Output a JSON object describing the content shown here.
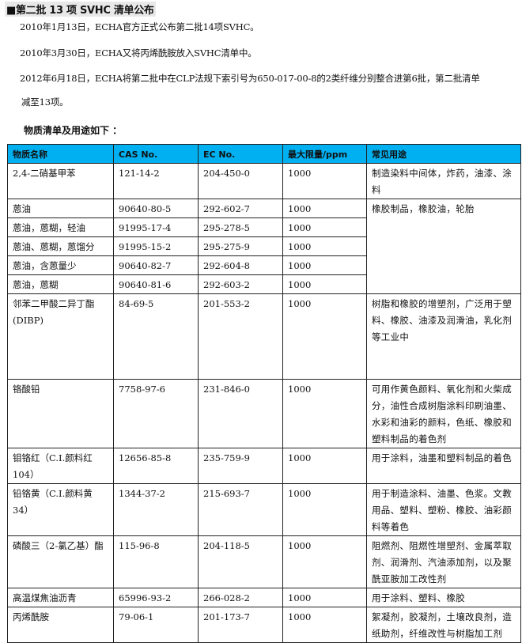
{
  "title": "■第二批 13 项 SVHC 清单公布",
  "paragraphs": [
    "2010年1月13日，ECHA官方正式公布第二批14项SVHC。",
    "2010年3月30日，ECHA又将丙烯酰胺放入SVHC清单中。",
    "2012年6月18日，ECHA将第二批中在CLP法规下索引号为650-017-00-8的2类纤维分别整合进第6批，第二批清单",
    "减至13项。"
  ],
  "subtitle": "物质清单及用途如下 ：",
  "table": {
    "header_color": "#00b0f0",
    "headers": [
      "物质名称",
      "CAS No.",
      "EC No.",
      "最大限量/ppm",
      "常见用途"
    ],
    "rows": [
      {
        "name": "2,4-二硝基甲苯",
        "cas": "121-14-2",
        "ec": "204-450-0",
        "limit": "1000",
        "use": "制造染料中间体，炸药，油漆、涂料"
      },
      {
        "name": "蒽油",
        "cas": "90640-80-5",
        "ec": "292-602-7",
        "limit": "1000",
        "use": "橡胶制品，橡胶油，轮胎"
      },
      {
        "name": "蒽油，蒽糊，轻油",
        "cas": "91995-17-4",
        "ec": "295-278-5",
        "limit": "1000"
      },
      {
        "name": "蒽油、蒽糊，蒽馏分",
        "cas": "91995-15-2",
        "ec": "295-275-9",
        "limit": "1000"
      },
      {
        "name": "蒽油，含蒽量少",
        "cas": "90640-82-7",
        "ec": "292-604-8",
        "limit": "1000"
      },
      {
        "name": "蒽油，蒽糊",
        "cas": "90640-81-6",
        "ec": "292-603-2",
        "limit": "1000"
      },
      {
        "name": "邻苯二甲酸二异丁酯(DIBP)",
        "cas": "84-69-5",
        "ec": "201-553-2",
        "limit": "1000",
        "use": "树脂和橡胶的增塑剂，广泛用于塑料、橡胶、油漆及润滑油，乳化剂等工业中"
      },
      {
        "name": "铬酸铅",
        "cas": "7758-97-6",
        "ec": "231-846-0",
        "limit": "1000",
        "use": "可用作黄色颜料、氧化剂和火柴成分，油性合成树脂涂料印刷油墨、水彩和油彩的颜料，色纸、橡胶和塑料制品的着色剂"
      },
      {
        "name": "钼铬红（C.I.颜料红104）",
        "cas": "12656-85-8",
        "ec": "235-759-9",
        "limit": "1000",
        "use": "用于涂料，油墨和塑料制品的着色"
      },
      {
        "name": "铅铬黄（C.I.颜料黄34）",
        "cas": "1344-37-2",
        "ec": "215-693-7",
        "limit": "1000",
        "use": "用于制造涂料、油墨、色浆。文教用品、塑料、塑粉、橡胶、油彩颜料等着色"
      },
      {
        "name": "磷酸三（2-氯乙基）酯",
        "cas": "115-96-8",
        "ec": "204-118-5",
        "limit": "1000",
        "use": "阻燃剂、阻燃性增塑剂、金属萃取剂、润滑剂、汽油添加剂，以及聚酰亚胺加工改性剂"
      },
      {
        "name": "高温煤焦油沥青",
        "cas": "65996-93-2",
        "ec": "266-028-2",
        "limit": "1000",
        "use": "用于涂料、塑料、橡胶"
      },
      {
        "name": "丙烯酰胺",
        "cas": "79-06-1",
        "ec": "201-173-7",
        "limit": "1000",
        "use": "絮凝剂，胶凝剂，土壤改良剂，造纸助剂，纤维改性与树脂加工剂"
      }
    ]
  }
}
